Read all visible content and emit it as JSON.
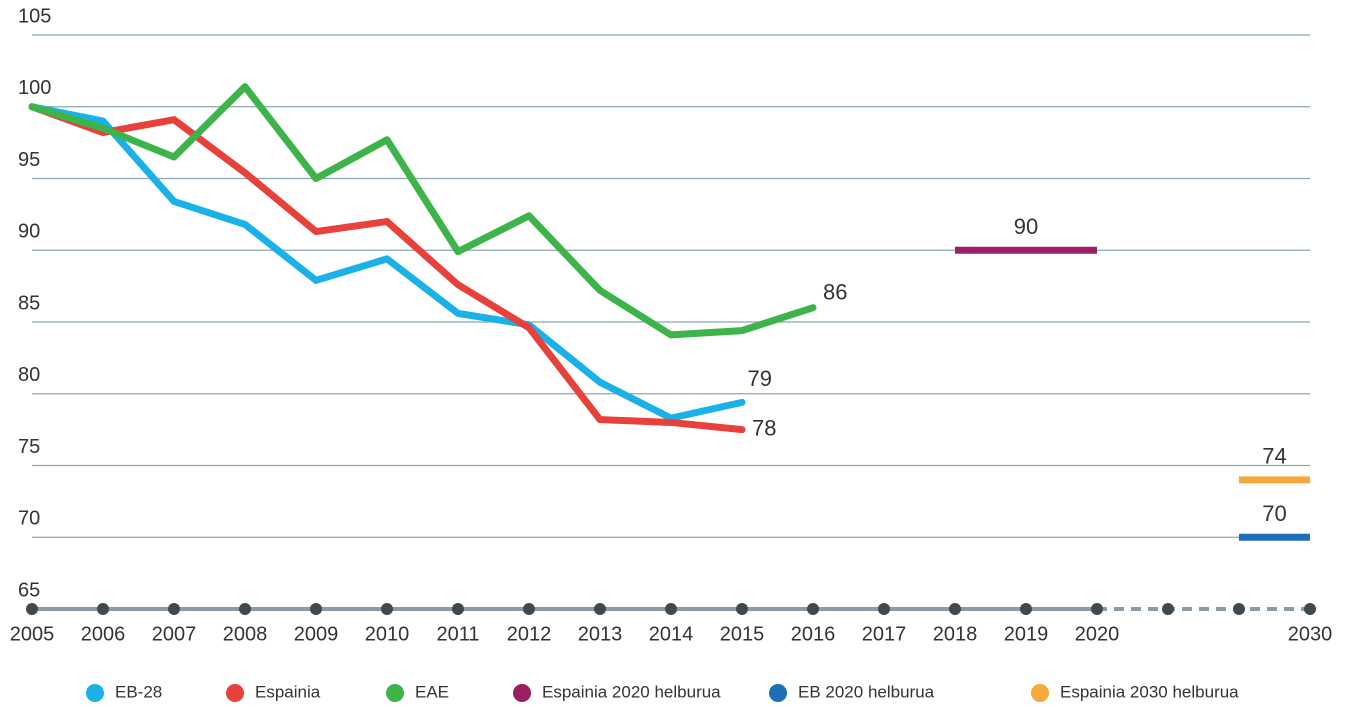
{
  "chart_data": {
    "type": "line",
    "categories": [
      "2005",
      "2006",
      "2007",
      "2008",
      "2009",
      "2010",
      "2011",
      "2012",
      "2013",
      "2014",
      "2015",
      "2016",
      "2017",
      "2018",
      "2019",
      "2020",
      null,
      null,
      "2030"
    ],
    "ylim": [
      65,
      105
    ],
    "yticks": [
      65,
      70,
      75,
      80,
      85,
      90,
      95,
      100,
      105
    ],
    "grid": true,
    "legend": "bottom",
    "series": [
      {
        "name": "EB-28",
        "color": "#1ab0e8",
        "values": [
          100,
          99.0,
          93.4,
          91.8,
          87.9,
          89.4,
          85.6,
          84.8,
          80.8,
          78.3,
          79.4,
          null,
          null,
          null,
          null,
          null,
          null,
          null,
          null
        ],
        "value_labels": [
          null,
          null,
          null,
          null,
          null,
          null,
          null,
          null,
          null,
          null,
          "79",
          null,
          null,
          null,
          null,
          null,
          null,
          null,
          null
        ]
      },
      {
        "name": "Espainia",
        "color": "#e8403a",
        "values": [
          100,
          98.2,
          99.1,
          95.4,
          91.3,
          92.0,
          87.6,
          84.6,
          78.2,
          78.0,
          77.5,
          null,
          null,
          null,
          null,
          null,
          null,
          null,
          null
        ],
        "value_labels": [
          null,
          null,
          null,
          null,
          null,
          null,
          null,
          null,
          null,
          null,
          "78",
          null,
          null,
          null,
          null,
          null,
          null,
          null,
          null
        ]
      },
      {
        "name": "EAE",
        "color": "#3cb44a",
        "values": [
          100,
          98.5,
          96.5,
          101.4,
          95.0,
          97.7,
          89.9,
          92.4,
          87.2,
          84.1,
          84.4,
          86.0,
          null,
          null,
          null,
          null,
          null,
          null,
          null
        ],
        "value_labels": [
          null,
          null,
          null,
          null,
          null,
          null,
          null,
          null,
          null,
          null,
          null,
          "86",
          null,
          null,
          null,
          null,
          null,
          null,
          null
        ]
      },
      {
        "name": "Espainia 2020 helburua",
        "color": "#9b1f63",
        "values": [
          null,
          null,
          null,
          null,
          null,
          null,
          null,
          null,
          null,
          null,
          null,
          null,
          null,
          90,
          90,
          90,
          null,
          null,
          null
        ],
        "value_labels": [
          null,
          null,
          null,
          null,
          null,
          null,
          null,
          null,
          null,
          null,
          null,
          null,
          null,
          null,
          "90",
          null,
          null,
          null,
          null
        ]
      },
      {
        "name": "EB 2020 helburua",
        "color": "#1c6fb8",
        "values": [
          null,
          null,
          null,
          null,
          null,
          null,
          null,
          null,
          null,
          null,
          null,
          null,
          null,
          null,
          null,
          null,
          null,
          70,
          70
        ],
        "value_labels": [
          null,
          null,
          null,
          null,
          null,
          null,
          null,
          null,
          null,
          null,
          null,
          null,
          null,
          null,
          null,
          null,
          null,
          null,
          "70"
        ]
      },
      {
        "name": "Espainia 2030 helburua",
        "color": "#f5a93b",
        "values": [
          null,
          null,
          null,
          null,
          null,
          null,
          null,
          null,
          null,
          null,
          null,
          null,
          null,
          null,
          null,
          null,
          null,
          74,
          74
        ],
        "value_labels": [
          null,
          null,
          null,
          null,
          null,
          null,
          null,
          null,
          null,
          null,
          null,
          null,
          null,
          null,
          null,
          null,
          null,
          null,
          "74"
        ]
      }
    ]
  }
}
